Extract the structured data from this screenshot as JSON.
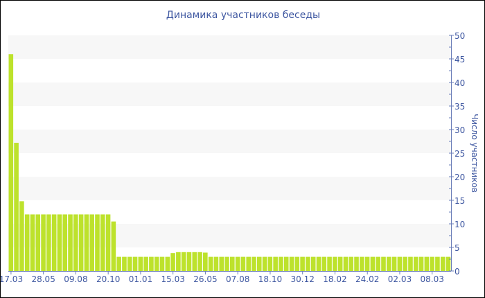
{
  "chart_data": {
    "type": "bar",
    "title": "Динамика участников беседы",
    "ylabel": "Число участников",
    "xlabel": "",
    "ylim": [
      0,
      50
    ],
    "yticks": [
      0,
      5,
      10,
      15,
      20,
      25,
      30,
      35,
      40,
      45,
      50
    ],
    "y_axis_side": "right",
    "grid": "alternating horizontal bands",
    "bar_color": "#bde22c",
    "text_color": "#3d56a0",
    "x_tick_every": 6,
    "x_tick_labels": [
      "17.03",
      "28.05",
      "09.08",
      "20.10",
      "01.01",
      "15.03",
      "26.05",
      "07.08",
      "18.10",
      "30.12",
      "18.02",
      "24.02",
      "02.03",
      "08.03"
    ],
    "values": [
      46,
      27.2,
      14.8,
      12,
      12,
      12,
      12,
      12,
      12,
      12,
      12,
      12,
      12,
      12,
      12,
      12,
      12,
      12,
      12,
      10.5,
      3,
      3,
      3,
      3,
      3,
      3,
      3,
      3,
      3,
      3,
      3.8,
      4,
      4,
      4,
      4,
      4,
      3.9,
      3,
      3,
      3,
      3,
      3,
      3,
      3,
      3,
      3,
      3,
      3,
      3,
      3,
      3,
      3,
      3,
      3,
      3,
      3,
      3,
      3,
      3,
      3,
      3,
      3,
      3,
      3,
      3,
      3,
      3,
      3,
      3,
      3,
      3,
      3,
      3,
      3,
      3,
      3,
      3,
      3,
      3,
      3,
      3,
      3
    ]
  }
}
